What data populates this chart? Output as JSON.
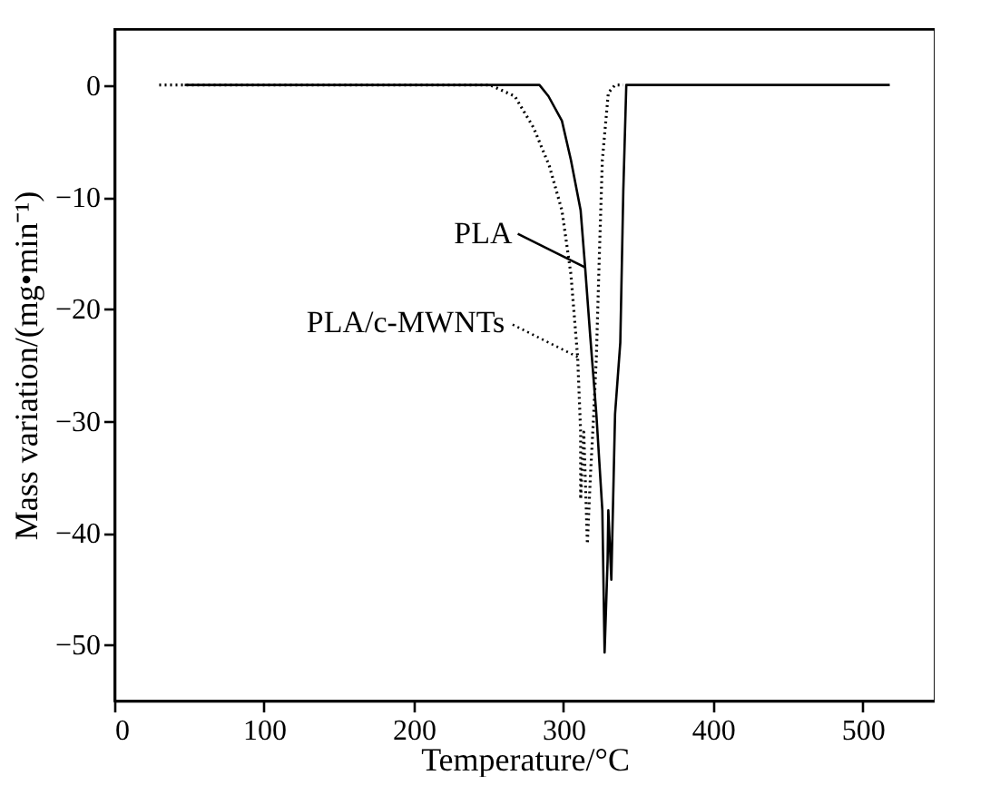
{
  "chart_data": {
    "type": "line",
    "xlabel": "Temperature/°C",
    "ylabel": "Mass variation/(mg•min⁻¹)",
    "xlim": [
      0,
      548
    ],
    "ylim": [
      -55,
      5
    ],
    "xticks": [
      0,
      100,
      200,
      300,
      400,
      500
    ],
    "yticks": [
      0,
      -10,
      -20,
      -30,
      -40,
      -50
    ],
    "grid": false,
    "legend": "left",
    "series": [
      {
        "name": "PLA",
        "color": "#000000",
        "line_style": "solid",
        "x": [
          47,
          150,
          250,
          284,
          290,
          299,
          305,
          311.5,
          314.5,
          318,
          322,
          326,
          327.5,
          329.5,
          330,
          332,
          334.5,
          338,
          340,
          342,
          400,
          518
        ],
        "values": [
          0,
          0,
          0,
          0,
          -1,
          -3.2,
          -6.7,
          -11.2,
          -16.3,
          -22.6,
          -29.4,
          -38,
          -50.7,
          -42.5,
          -38,
          -44.2,
          -29.4,
          -23,
          -9.5,
          0,
          0,
          0
        ]
      },
      {
        "name": "PLA/c-MWNTs",
        "color": "#000000",
        "line_style": "dotted",
        "x": [
          30,
          100,
          200,
          251,
          267.5,
          280,
          290.5,
          299,
          305,
          309.5,
          311.5,
          311.5,
          313.6,
          316,
          318,
          320,
          322,
          324,
          326,
          330,
          334.5,
          340
        ],
        "values": [
          0,
          0,
          0,
          0,
          -1,
          -3.8,
          -7.2,
          -11.2,
          -16.9,
          -24.3,
          -31,
          -37,
          -31,
          -41,
          -35,
          -30,
          -24.3,
          -15.2,
          -6.7,
          -0.7,
          0,
          0
        ]
      }
    ]
  }
}
